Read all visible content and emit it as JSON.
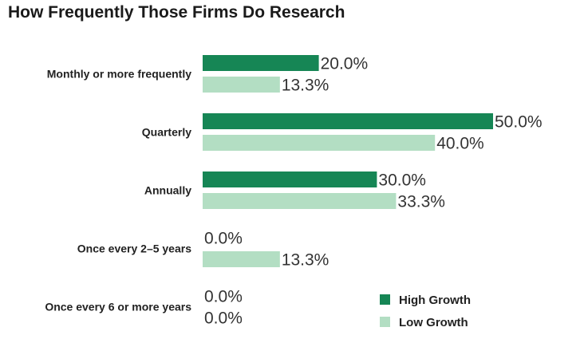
{
  "chart_data": {
    "type": "bar",
    "orientation": "horizontal",
    "title": "How Frequently Those Firms Do Research",
    "categories": [
      "Monthly or more frequently",
      "Quarterly",
      "Annually",
      "Once every 2–5 years",
      "Once every 6 or more years"
    ],
    "series": [
      {
        "name": "High Growth",
        "values": [
          20.0,
          50.0,
          30.0,
          0.0,
          0.0
        ],
        "color": "#168655"
      },
      {
        "name": "Low Growth",
        "values": [
          13.3,
          40.0,
          33.3,
          13.3,
          0.0
        ],
        "color": "#b3dec3"
      }
    ],
    "value_suffix": "%",
    "xlim": [
      0,
      50
    ],
    "grid": false,
    "legend_position": "bottom-right"
  }
}
